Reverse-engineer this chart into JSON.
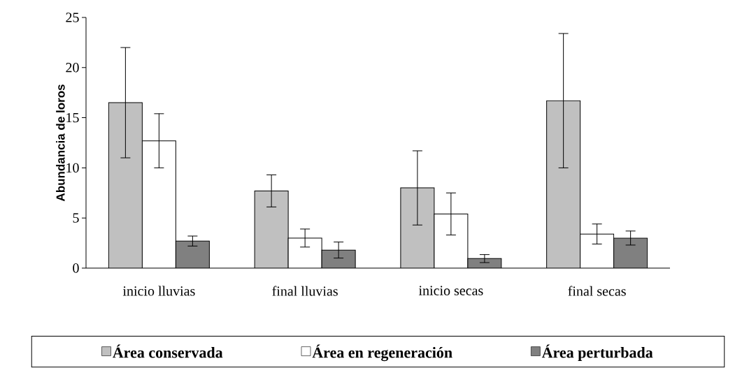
{
  "chart_data": {
    "type": "bar",
    "ylabel": "Abundancia de loros",
    "categories": [
      "inicio lluvias",
      "final lluvias",
      "inicio secas",
      "final secas"
    ],
    "series": [
      {
        "name": "Área conservada",
        "color": "#c0c0c0",
        "values": [
          16.5,
          7.7,
          8.0,
          16.7
        ],
        "errors": [
          5.5,
          1.6,
          3.7,
          6.7
        ]
      },
      {
        "name": "Área en regeneración",
        "color": "#ffffff",
        "values": [
          12.7,
          3.0,
          5.4,
          3.4
        ],
        "errors": [
          2.7,
          0.9,
          2.1,
          1.0
        ]
      },
      {
        "name": "Área perturbada",
        "color": "#808080",
        "values": [
          2.7,
          1.8,
          0.95,
          3.0
        ],
        "errors": [
          0.5,
          0.8,
          0.4,
          0.7
        ]
      }
    ],
    "ylim": [
      0,
      25
    ],
    "yticks": [
      0,
      5,
      10,
      15,
      20,
      25
    ],
    "grid": false,
    "legend": "bottom"
  }
}
